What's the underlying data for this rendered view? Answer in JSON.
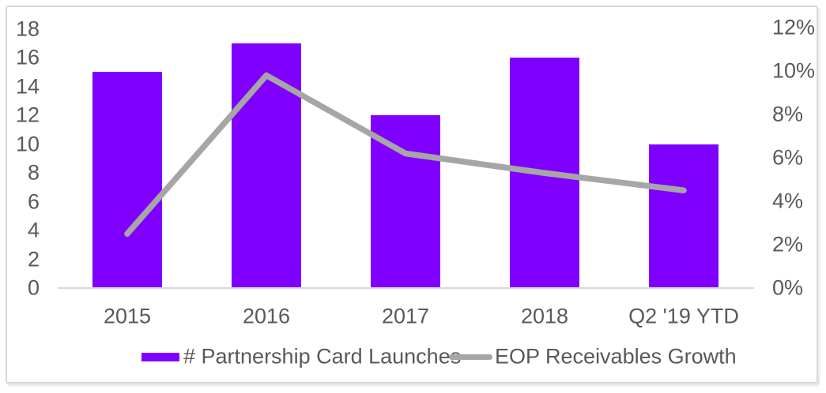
{
  "chart_data": {
    "type": "combo_bar_line_dual_axis",
    "title": "",
    "categories": [
      "2015",
      "2016",
      "2017",
      "2018",
      "Q2 '19 YTD"
    ],
    "series": [
      {
        "name": "# Partnership Card Launches",
        "type": "bar",
        "axis": "left",
        "color": "#7f00ff",
        "values": [
          15,
          17,
          12,
          16,
          10
        ]
      },
      {
        "name": "EOP Receivables Growth",
        "type": "line",
        "axis": "right",
        "color": "#a6a6a6",
        "values": [
          2.5,
          9.8,
          6.2,
          5.3,
          4.5
        ],
        "unit": "%"
      }
    ],
    "left_axis": {
      "min": 0,
      "max": 18,
      "step": 2,
      "suffix": "",
      "tick_labels": [
        "0",
        "2",
        "4",
        "6",
        "8",
        "10",
        "12",
        "14",
        "16",
        "18"
      ]
    },
    "right_axis": {
      "min": 0,
      "max": 12,
      "step": 2,
      "suffix": "%",
      "tick_labels": [
        "0%",
        "2%",
        "4%",
        "6%",
        "8%",
        "10%",
        "12%"
      ]
    },
    "grid": "off",
    "legend_position": "bottom",
    "colors": {
      "axis_text": "#595959",
      "axis_line": "#d9d9d9",
      "frame_border": "#d9d9d9",
      "background": "#ffffff"
    }
  }
}
